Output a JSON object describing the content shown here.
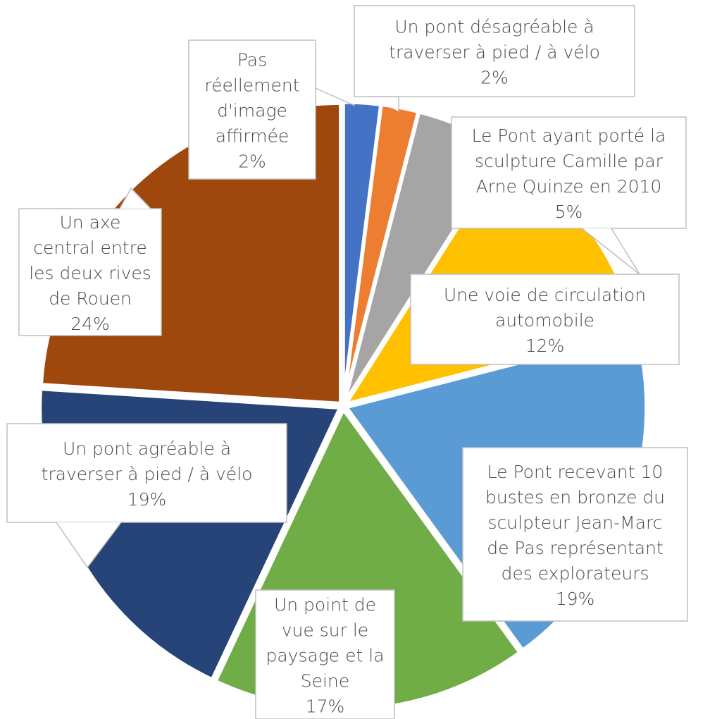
{
  "chart_data": {
    "type": "pie",
    "title": "",
    "start_angle_deg": 0,
    "direction": "clockwise",
    "slices": [
      {
        "label": "Un pont désagréable à traverser à pied / à vélo",
        "pct_label": "2%",
        "value": 2,
        "color": "#4472C4"
      },
      {
        "label": "Pas réellement d'image affirmée",
        "pct_label": "2%",
        "value": 2,
        "color": "#ED7D31"
      },
      {
        "label": "Le Pont ayant porté la sculpture Camille par Arne Quinze en 2010",
        "pct_label": "5%",
        "value": 5,
        "color": "#A5A5A5"
      },
      {
        "label": "Une voie de circulation automobile",
        "pct_label": "12%",
        "value": 12,
        "color": "#FFC000"
      },
      {
        "label": "Le Pont recevant 10 bustes en bronze du sculpteur Jean-Marc de Pas représentant des explorateurs",
        "pct_label": "19%",
        "value": 19,
        "color": "#5B9BD5"
      },
      {
        "label": "Un point de vue sur le paysage et la Seine",
        "pct_label": "17%",
        "value": 17,
        "color": "#70AD47"
      },
      {
        "label": "Un pont agréable à traverser à pied / à vélo",
        "pct_label": "19%",
        "value": 19,
        "color": "#264478"
      },
      {
        "label": "Un axe central entre les deux rives de Rouen",
        "pct_label": "24%",
        "value": 24,
        "color": "#9E480E"
      }
    ]
  },
  "callouts": [
    {
      "lines": [
        "Un pont désagréable à",
        "traverser à pied / à vélo"
      ],
      "pct": "2%"
    },
    {
      "lines": [
        "Pas",
        "réellement",
        "d'image",
        "affirmée"
      ],
      "pct": "2%"
    },
    {
      "lines": [
        "Le Pont ayant porté la",
        "sculpture Camille par",
        "Arne Quinze en 2010"
      ],
      "pct": "5%"
    },
    {
      "lines": [
        "Une voie de circulation",
        "automobile"
      ],
      "pct": "12%"
    },
    {
      "lines": [
        "Le Pont recevant 10",
        "bustes en bronze du",
        "sculpteur Jean-Marc",
        "de Pas représentant",
        "des explorateurs"
      ],
      "pct": "19%"
    },
    {
      "lines": [
        "Un point de",
        "vue sur le",
        "paysage et la",
        "Seine"
      ],
      "pct": "17%"
    },
    {
      "lines": [
        "Un pont agréable à",
        "traverser à pied / à vélo"
      ],
      "pct": "19%"
    },
    {
      "lines": [
        "Un axe",
        "central entre",
        "les deux rives",
        "de Rouen"
      ],
      "pct": "24%"
    }
  ]
}
